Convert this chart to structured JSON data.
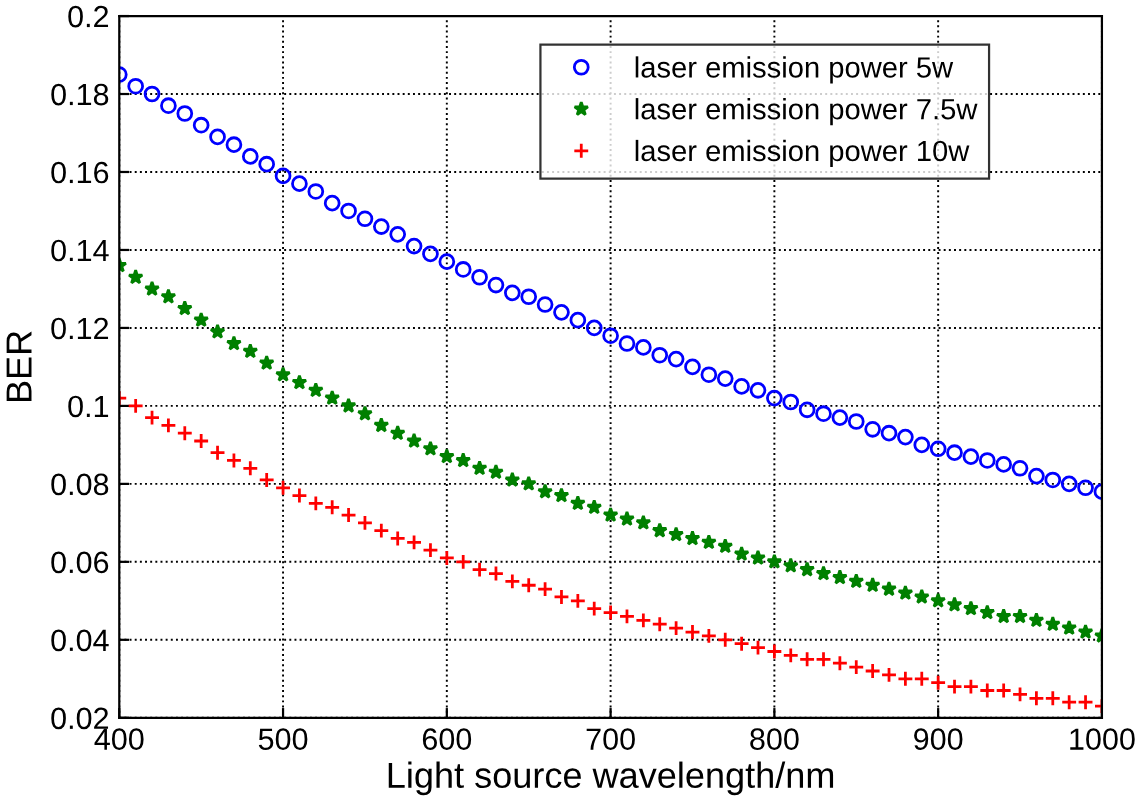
{
  "chart_data": {
    "type": "scatter",
    "xlabel": "Light source wavelength/nm",
    "ylabel": "BER",
    "x": [
      400,
      410,
      420,
      430,
      440,
      450,
      460,
      470,
      480,
      490,
      500,
      510,
      520,
      530,
      540,
      550,
      560,
      570,
      580,
      590,
      600,
      610,
      620,
      630,
      640,
      650,
      660,
      670,
      680,
      690,
      700,
      710,
      720,
      730,
      740,
      750,
      760,
      770,
      780,
      790,
      800,
      810,
      820,
      830,
      840,
      850,
      860,
      870,
      880,
      890,
      900,
      910,
      920,
      930,
      940,
      950,
      960,
      970,
      980,
      990,
      1000
    ],
    "series": [
      {
        "name": "laser emission power 5w",
        "color": "#0000ff",
        "marker": "circle",
        "values": [
          0.185,
          0.182,
          0.18,
          0.177,
          0.175,
          0.172,
          0.169,
          0.167,
          0.164,
          0.162,
          0.159,
          0.157,
          0.155,
          0.152,
          0.15,
          0.148,
          0.146,
          0.144,
          0.141,
          0.139,
          0.137,
          0.135,
          0.133,
          0.131,
          0.129,
          0.128,
          0.126,
          0.124,
          0.122,
          0.12,
          0.118,
          0.116,
          0.115,
          0.113,
          0.112,
          0.11,
          0.108,
          0.107,
          0.105,
          0.104,
          0.102,
          0.101,
          0.099,
          0.098,
          0.097,
          0.096,
          0.094,
          0.093,
          0.092,
          0.09,
          0.089,
          0.088,
          0.087,
          0.086,
          0.085,
          0.084,
          0.082,
          0.081,
          0.08,
          0.079,
          0.078
        ]
      },
      {
        "name": "laser emission power 7.5w",
        "color": "#008000",
        "marker": "star",
        "values": [
          0.136,
          0.133,
          0.13,
          0.128,
          0.125,
          0.122,
          0.119,
          0.116,
          0.114,
          0.111,
          0.108,
          0.106,
          0.104,
          0.102,
          0.1,
          0.098,
          0.095,
          0.093,
          0.091,
          0.089,
          0.087,
          0.086,
          0.084,
          0.083,
          0.081,
          0.08,
          0.078,
          0.077,
          0.075,
          0.074,
          0.072,
          0.071,
          0.07,
          0.068,
          0.067,
          0.066,
          0.065,
          0.064,
          0.062,
          0.061,
          0.06,
          0.059,
          0.058,
          0.057,
          0.056,
          0.055,
          0.054,
          0.053,
          0.052,
          0.051,
          0.05,
          0.049,
          0.048,
          0.047,
          0.046,
          0.046,
          0.045,
          0.044,
          0.043,
          0.042,
          0.041
        ]
      },
      {
        "name": "laser emission power 10w",
        "color": "#ff0000",
        "marker": "cross",
        "values": [
          0.102,
          0.1,
          0.097,
          0.095,
          0.093,
          0.091,
          0.088,
          0.086,
          0.084,
          0.081,
          0.079,
          0.077,
          0.075,
          0.074,
          0.072,
          0.07,
          0.068,
          0.066,
          0.065,
          0.063,
          0.061,
          0.06,
          0.058,
          0.057,
          0.055,
          0.054,
          0.053,
          0.051,
          0.05,
          0.048,
          0.047,
          0.046,
          0.045,
          0.044,
          0.043,
          0.042,
          0.041,
          0.04,
          0.039,
          0.038,
          0.037,
          0.036,
          0.035,
          0.035,
          0.034,
          0.033,
          0.032,
          0.031,
          0.03,
          0.03,
          0.029,
          0.028,
          0.028,
          0.027,
          0.027,
          0.026,
          0.025,
          0.025,
          0.024,
          0.024,
          0.023
        ]
      }
    ],
    "xlim": [
      400,
      1000
    ],
    "xticks": [
      400,
      500,
      600,
      700,
      800,
      900,
      1000
    ],
    "ylim": [
      0.02,
      0.2
    ],
    "yticks": [
      0.02,
      0.04,
      0.06,
      0.08,
      0.1,
      0.12,
      0.14,
      0.16,
      0.18,
      0.2
    ],
    "grid": true,
    "legend": "top right"
  }
}
